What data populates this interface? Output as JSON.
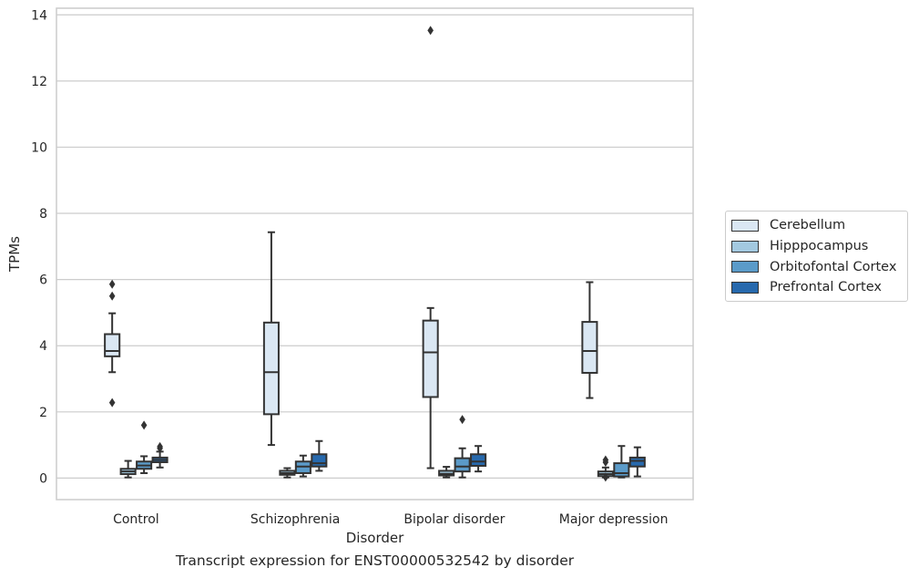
{
  "chart_data": {
    "type": "box",
    "title": "",
    "caption": "Transcript expression for ENST00000532542 by disorder",
    "xlabel": "Disorder",
    "ylabel": "TPMs",
    "ylim": [
      -0.65,
      14.2
    ],
    "yticks": [
      0,
      2,
      4,
      6,
      8,
      10,
      12,
      14
    ],
    "grid": "horizontal",
    "legend_position": "right",
    "categories": [
      "Control",
      "Schizophrenia",
      "Bipolar disorder",
      "Major depression"
    ],
    "series": [
      {
        "name": "Cerebellum",
        "color": "#dae7f3",
        "boxes": [
          {
            "whislo": 3.2,
            "q1": 3.68,
            "med": 3.84,
            "q3": 4.35,
            "whishi": 4.98,
            "fliers": [
              5.86,
              5.5,
              2.28
            ]
          },
          {
            "whislo": 1.0,
            "q1": 1.93,
            "med": 3.2,
            "q3": 4.7,
            "whishi": 7.43,
            "fliers": []
          },
          {
            "whislo": 0.3,
            "q1": 2.45,
            "med": 3.8,
            "q3": 4.76,
            "whishi": 5.14,
            "fliers": [
              13.53
            ]
          },
          {
            "whislo": 2.42,
            "q1": 3.18,
            "med": 3.84,
            "q3": 4.72,
            "whishi": 5.92,
            "fliers": []
          }
        ]
      },
      {
        "name": "Hipppocampus",
        "color": "#a3c9e0",
        "boxes": [
          {
            "whislo": 0.02,
            "q1": 0.12,
            "med": 0.2,
            "q3": 0.28,
            "whishi": 0.52,
            "fliers": []
          },
          {
            "whislo": 0.02,
            "q1": 0.1,
            "med": 0.15,
            "q3": 0.22,
            "whishi": 0.3,
            "fliers": []
          },
          {
            "whislo": 0.02,
            "q1": 0.08,
            "med": 0.13,
            "q3": 0.22,
            "whishi": 0.34,
            "fliers": []
          },
          {
            "whislo": 0.02,
            "q1": 0.06,
            "med": 0.12,
            "q3": 0.2,
            "whishi": 0.32,
            "fliers": [
              0.55,
              0.48,
              0.03
            ]
          }
        ]
      },
      {
        "name": "Orbitofontal Cortex",
        "color": "#5b9bc9",
        "boxes": [
          {
            "whislo": 0.15,
            "q1": 0.28,
            "med": 0.38,
            "q3": 0.5,
            "whishi": 0.66,
            "fliers": [
              1.6
            ]
          },
          {
            "whislo": 0.05,
            "q1": 0.15,
            "med": 0.35,
            "q3": 0.5,
            "whishi": 0.68,
            "fliers": []
          },
          {
            "whislo": 0.02,
            "q1": 0.2,
            "med": 0.35,
            "q3": 0.6,
            "whishi": 0.9,
            "fliers": [
              1.77
            ]
          },
          {
            "whislo": 0.02,
            "q1": 0.05,
            "med": 0.15,
            "q3": 0.45,
            "whishi": 0.97,
            "fliers": []
          }
        ]
      },
      {
        "name": "Prefrontal Cortex",
        "color": "#2769ad",
        "boxes": [
          {
            "whislo": 0.32,
            "q1": 0.48,
            "med": 0.55,
            "q3": 0.62,
            "whishi": 0.8,
            "fliers": [
              0.95,
              0.9
            ]
          },
          {
            "whislo": 0.22,
            "q1": 0.35,
            "med": 0.45,
            "q3": 0.72,
            "whishi": 1.12,
            "fliers": []
          },
          {
            "whislo": 0.2,
            "q1": 0.37,
            "med": 0.5,
            "q3": 0.72,
            "whishi": 0.97,
            "fliers": []
          },
          {
            "whislo": 0.05,
            "q1": 0.35,
            "med": 0.52,
            "q3": 0.62,
            "whishi": 0.93,
            "fliers": []
          }
        ]
      }
    ]
  }
}
